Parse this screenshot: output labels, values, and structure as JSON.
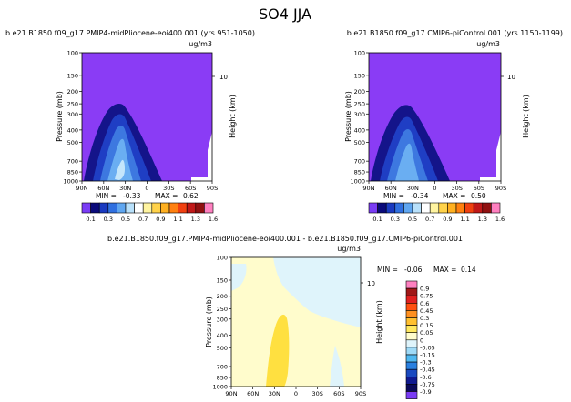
{
  "page_title": "SO4 JJA",
  "chart_data": [
    {
      "type": "heatmap",
      "subtitle_left": "b.e21.B1850.f09_g17.PMIP4-midPliocene-eoi400.001 (yrs 951-1050)",
      "units": "ug/m3",
      "xlabel": "",
      "ylabel": "Pressure (mb)",
      "ylabel_right": "Height (km)",
      "x_ticks": [
        "90N",
        "60N",
        "30N",
        "0",
        "30S",
        "60S",
        "90S"
      ],
      "y_ticks": [
        "100",
        "150",
        "200",
        "250",
        "300",
        "400",
        "500",
        "700",
        "850",
        "1000"
      ],
      "y_right_ticks": [
        "10"
      ],
      "min_label": "MIN =",
      "min_value": "-0.33",
      "max_label": "MAX =",
      "max_value": "0.62",
      "colorbar_labels": [
        "0.1",
        "0.3",
        "0.5",
        "0.7",
        "0.9",
        "1.1",
        "1.3",
        "1.6"
      ],
      "colorbar_colors": [
        "#7a3cf5",
        "#0a0a7a",
        "#1a3ac0",
        "#3070e0",
        "#5fa6f0",
        "#b8e0fa",
        "#ffffff",
        "#fff4a0",
        "#ffd24a",
        "#ffb020",
        "#ff8010",
        "#f04010",
        "#c01818",
        "#901010",
        "#ff80c0"
      ]
    },
    {
      "type": "heatmap",
      "subtitle_left": "b.e21.B1850.f09_g17.CMIP6-piControl.001 (yrs 1150-1199)",
      "units": "ug/m3",
      "xlabel": "",
      "ylabel": "Pressure (mb)",
      "ylabel_right": "Height (km)",
      "x_ticks": [
        "90N",
        "60N",
        "30N",
        "0",
        "30S",
        "60S",
        "90S"
      ],
      "y_ticks": [
        "100",
        "150",
        "200",
        "250",
        "300",
        "400",
        "500",
        "700",
        "850",
        "1000"
      ],
      "y_right_ticks": [
        "10"
      ],
      "min_label": "MIN =",
      "min_value": "-0.34",
      "max_label": "MAX =",
      "max_value": "0.50",
      "colorbar_labels": [
        "0.1",
        "0.3",
        "0.5",
        "0.7",
        "0.9",
        "1.1",
        "1.3",
        "1.6"
      ],
      "colorbar_colors": [
        "#7a3cf5",
        "#0a0a7a",
        "#1a3ac0",
        "#3070e0",
        "#5fa6f0",
        "#b8e0fa",
        "#ffffff",
        "#fff4a0",
        "#ffd24a",
        "#ffb020",
        "#ff8010",
        "#f04010",
        "#c01818",
        "#901010",
        "#ff80c0"
      ]
    },
    {
      "type": "heatmap",
      "title": "b.e21.B1850.f09_g17.PMIP4-midPliocene-eoi400.001 - b.e21.B1850.f09_g17.CMIP6-piControl.001",
      "units": "ug/m3",
      "xlabel": "",
      "ylabel": "Pressure (mb)",
      "ylabel_right": "Height (km)",
      "x_ticks": [
        "90N",
        "60N",
        "30N",
        "0",
        "30S",
        "60S",
        "90S"
      ],
      "y_ticks": [
        "100",
        "150",
        "200",
        "250",
        "300",
        "400",
        "500",
        "700",
        "850",
        "1000"
      ],
      "y_right_ticks": [
        "10"
      ],
      "min_label": "MIN =",
      "min_value": "-0.06",
      "max_label": "MAX =",
      "max_value": "0.14",
      "colorbar_labels": [
        "0.9",
        "0.75",
        "0.6",
        "0.45",
        "0.3",
        "0.15",
        "0.05",
        "0",
        "-0.05",
        "-0.15",
        "-0.3",
        "-0.45",
        "-0.6",
        "-0.75",
        "-0.9"
      ],
      "colorbar_colors": [
        "#ff80c0",
        "#a01818",
        "#e02020",
        "#ff5010",
        "#ff9020",
        "#ffc030",
        "#ffe860",
        "#fffccc",
        "#dff4fb",
        "#9fdaf7",
        "#50b8f0",
        "#2a80e0",
        "#1a4ac0",
        "#101a90",
        "#0a0a5a",
        "#7a3cf5"
      ]
    }
  ]
}
